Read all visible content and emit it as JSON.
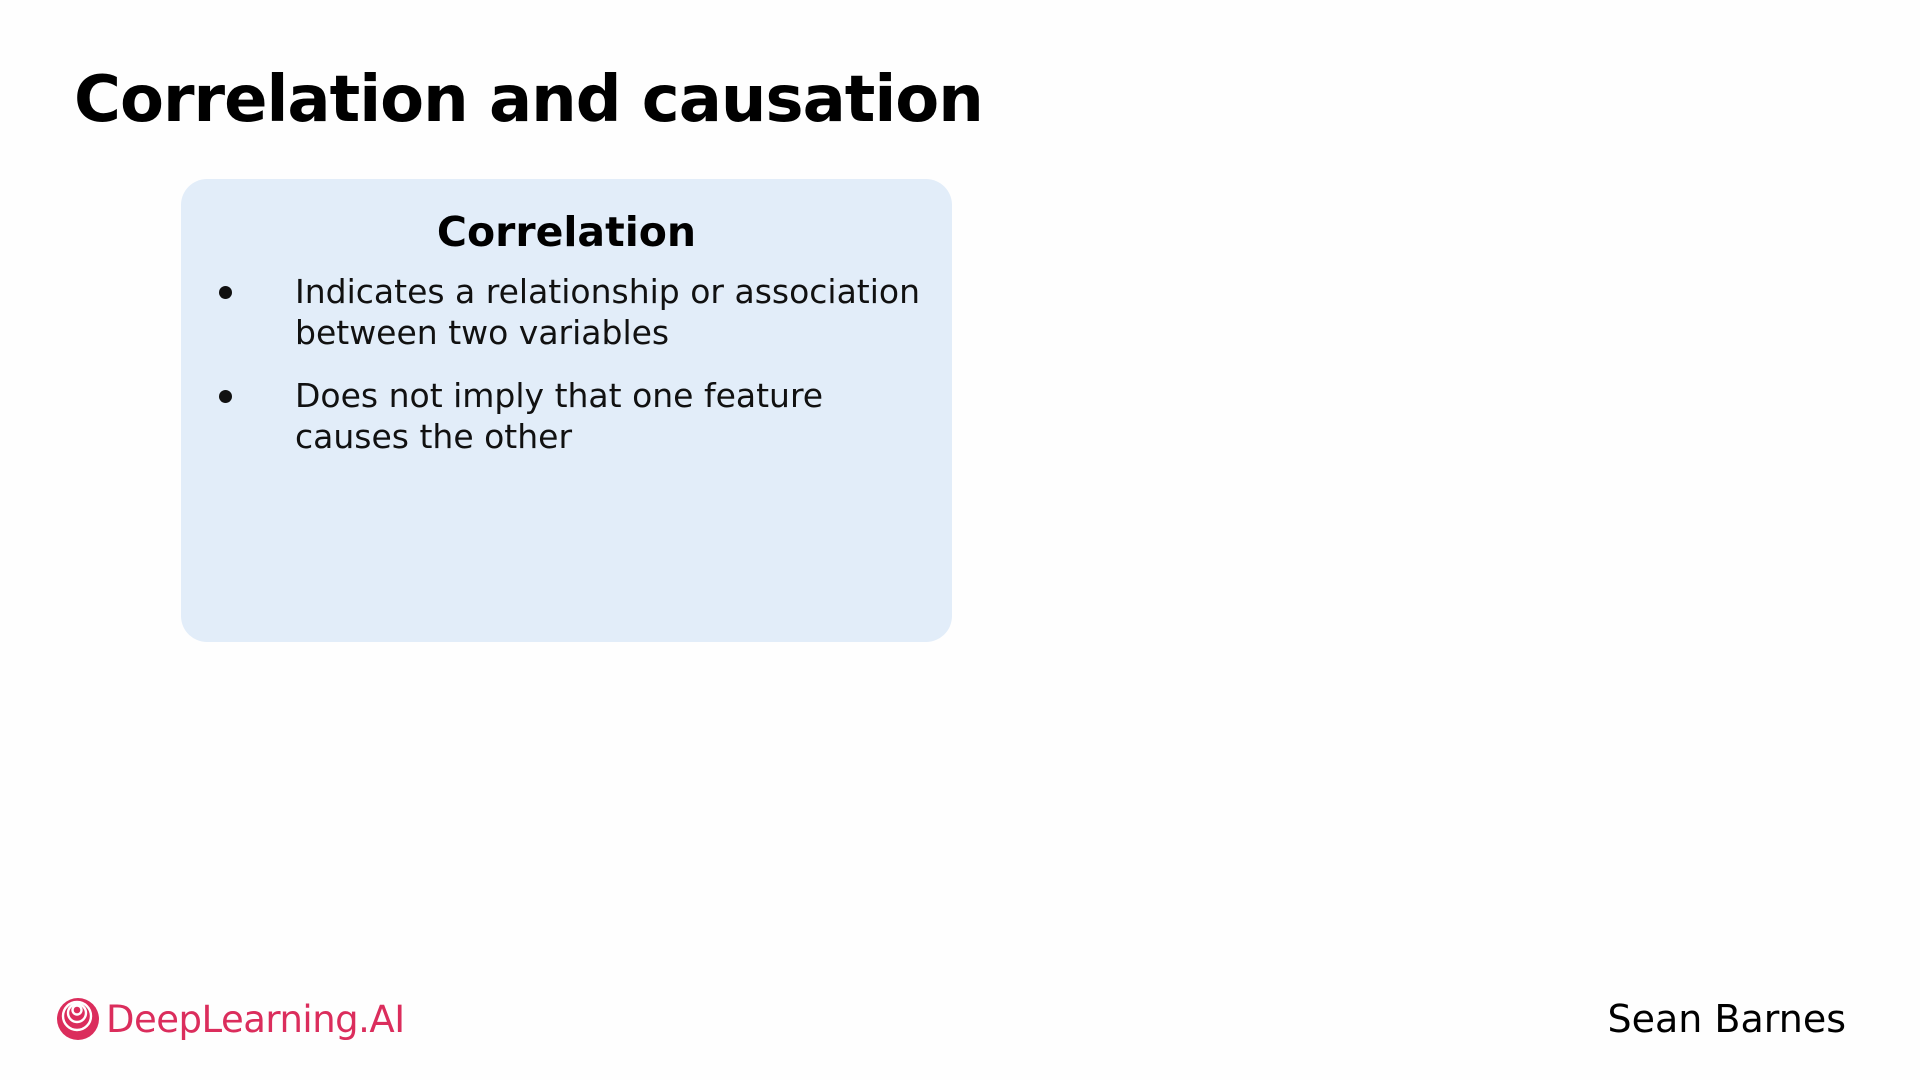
{
  "slide": {
    "title": "Correlation and causation"
  },
  "card": {
    "heading": "Correlation",
    "bullets": [
      "Indicates a relationship or association between two variables",
      "Does not imply that one feature causes the other"
    ],
    "background_color": "#e2edf9"
  },
  "branding": {
    "logo_text": "DeepLearning.AI",
    "logo_icon": "deeplearning-ai-logo-icon",
    "brand_color": "#db2d5c"
  },
  "presenter": {
    "name": "Sean Barnes"
  }
}
